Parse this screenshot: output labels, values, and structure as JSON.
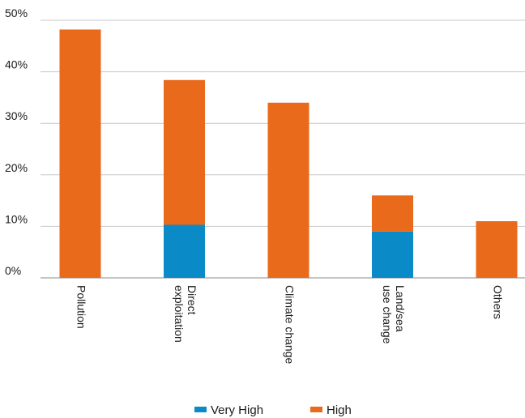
{
  "chart_data": {
    "type": "bar",
    "stacked": true,
    "categories": [
      [
        "Pollution"
      ],
      [
        "Direct",
        "exploitation"
      ],
      [
        "Climate change"
      ],
      [
        "Land/sea",
        "use change"
      ],
      [
        "Others"
      ]
    ],
    "series": [
      {
        "name": "Very High",
        "color": "#0a8ac6",
        "values": [
          0,
          10.3,
          0,
          9,
          0
        ]
      },
      {
        "name": "High",
        "color": "#ea6a1b",
        "values": [
          48.2,
          28.1,
          34,
          7,
          11
        ]
      }
    ],
    "y_ticks": [
      "0%",
      "10%",
      "20%",
      "30%",
      "40%",
      "50%"
    ],
    "ylim": [
      0,
      50
    ],
    "grid": true,
    "legend_position": "bottom-center",
    "title": "",
    "xlabel": "",
    "ylabel": ""
  }
}
